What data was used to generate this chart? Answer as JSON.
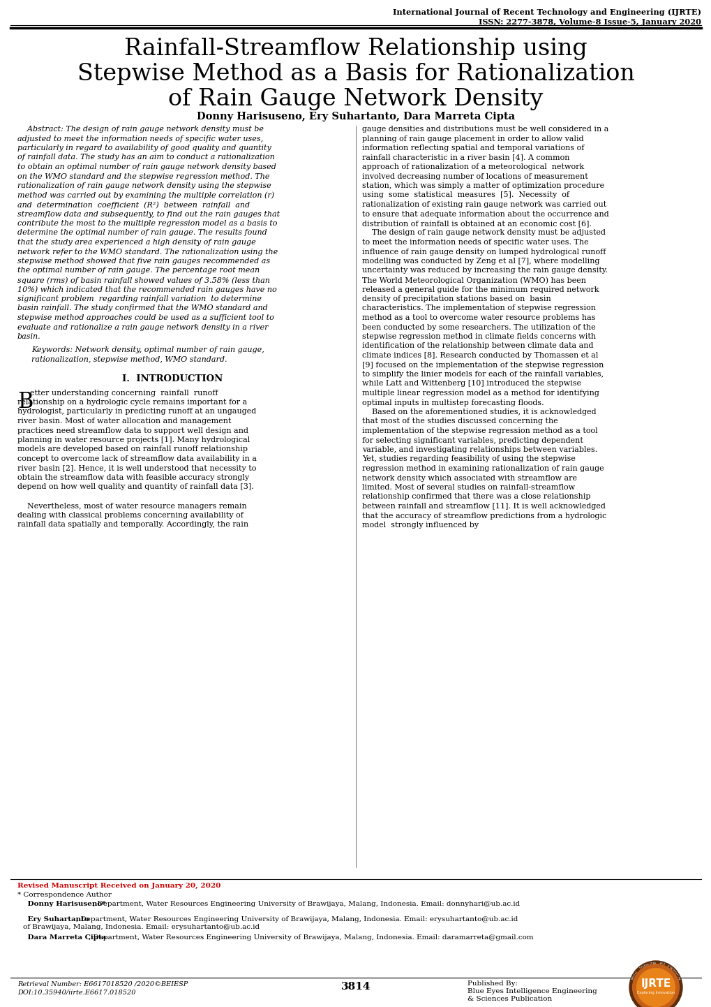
{
  "journal_line1": "International Journal of Recent Technology and Engineering (IJRTE)",
  "journal_line2": "ISSN: 2277-3878, Volume-8 Issue-5, January 2020",
  "title_line1": "Rainfall-Streamflow Relationship using",
  "title_line2": "Stepwise Method as a Basis for Rationalization",
  "title_line3": "of Rain Gauge Network Density",
  "authors": "Donny Harisuseno, Ery Suhartanto, Dara Marreta Cipta",
  "abstract_label": "Abstract:",
  "abstract_body": " The design of rain gauge network density must be adjusted to meet the information needs of specific water uses, particularly in regard to availability of good quality and quantity of rainfall data. The study has an aim to conduct a rationalization to obtain an optimal number of rain gauge network density based on the WMO standard and the stepwise regression method. The rationalization of rain gauge network density using the stepwise method was carried out by examining the multiple correlation (r) and determination coefficient (R²) between rainfall and streamflow data and subsequently, to find out the rain gauges that contribute the most to the multiple regression model as a basis to determine the optimal number of rain gauge. The results found that the study area experienced a high density of rain gauge network refer to the WMO standard. The rationalization using the stepwise method showed that five rain gauges recommended as the optimal number of rain gauge. The percentage root mean square (rms) of basin rainfall showed values of 3.58% (less than 10%) which indicated that the recommended rain gauges have no significant problem regarding rainfall variation to determine basin rainfall. The study confirmed that the WMO standard and stepwise method approaches could be used as a sufficient tool to evaluate and rationalize a rain gauge network density in a river basin.",
  "keywords_line1": "Keywords: Network density, optimal number of rain gauge,",
  "keywords_line2": "rationalization, stepwise method, WMO standard.",
  "section1_title": "I.  INTRODUCTION",
  "drop_cap": "B",
  "intro_left_col": [
    "etter understanding concerning  rainfall  runoff",
    "relationship on a hydrologic cycle remains important for a",
    "hydrologist, particularly in predicting runoff at an ungauged",
    "river basin. Most of water allocation and management",
    "practices need streamflow data to support well design and",
    "planning in water resource projects [1]. Many hydrological",
    "models are developed based on rainfall runoff relationship",
    "concept to overcome lack of streamflow data availability in a",
    "river basin [2]. Hence, it is well understood that necessity to",
    "obtain the streamflow data with feasible accuracy strongly",
    "depend on how well quality and quantity of rainfall data [3].",
    "",
    "    Nevertheless, most of water resource managers remain",
    "dealing with classical problems concerning availability of",
    "rainfall data spatially and temporally. Accordingly, the rain"
  ],
  "right_col_lines": [
    "gauge densities and distributions must be well considered in a",
    "planning of rain gauge placement in order to allow valid",
    "information reflecting spatial and temporal variations of",
    "rainfall characteristic in a river basin [4]. A common",
    "approach of rationalization of a meteorological  network",
    "involved decreasing number of locations of measurement",
    "station, which was simply a matter of optimization procedure",
    "using  some  statistical  measures  [5].  Necessity  of",
    "rationalization of existing rain gauge network was carried out",
    "to ensure that adequate information about the occurrence and",
    "distribution of rainfall is obtained at an economic cost [6].",
    "    The design of rain gauge network density must be adjusted",
    "to meet the information needs of specific water uses. The",
    "influence of rain gauge density on lumped hydrological runoff",
    "modelling was conducted by Zeng et al [7], where modelling",
    "uncertainty was reduced by increasing the rain gauge density.",
    "The World Meteorological Organization (WMO) has been",
    "released a general guide for the minimum required network",
    "density of precipitation stations based on  basin",
    "characteristics. The implementation of stepwise regression",
    "method as a tool to overcome water resource problems has",
    "been conducted by some researchers. The utilization of the",
    "stepwise regression method in climate fields concerns with",
    "identification of the relationship between climate data and",
    "climate indices [8]. Research conducted by Thomassen et al",
    "[9] focused on the implementation of the stepwise regression",
    "to simplify the linier models for each of the rainfall variables,",
    "while Latt and Wittenberg [10] introduced the stepwise",
    "multiple linear regression model as a method for identifying",
    "optimal inputs in multistep forecasting floods.",
    "    Based on the aforementioned studies, it is acknowledged",
    "that most of the studies discussed concerning the",
    "implementation of the stepwise regression method as a tool",
    "for selecting significant variables, predicting dependent",
    "variable, and investigating relationships between variables.",
    "Yet, studies regarding feasibility of using the stepwise",
    "regression method in examining rationalization of rain gauge",
    "network density which associated with streamflow are",
    "limited. Most of several studies on rainfall-streamflow",
    "relationship confirmed that there was a close relationship",
    "between rainfall and streamflow [11]. It is well acknowledged",
    "that the accuracy of streamflow predictions from a hydrologic",
    "model  strongly influenced by"
  ],
  "abstract_lines": [
    "    Abstract: The design of rain gauge network density must be",
    "adjusted to meet the information needs of specific water uses,",
    "particularly in regard to availability of good quality and quantity",
    "of rainfall data. The study has an aim to conduct a rationalization",
    "to obtain an optimal number of rain gauge network density based",
    "on the WMO standard and the stepwise regression method. The",
    "rationalization of rain gauge network density using the stepwise",
    "method was carried out by examining the multiple correlation (r)",
    "and  determination  coefficient  (R²)  between  rainfall  and",
    "streamflow data and subsequently, to find out the rain gauges that",
    "contribute the most to the multiple regression model as a basis to",
    "determine the optimal number of rain gauge. The results found",
    "that the study area experienced a high density of rain gauge",
    "network refer to the WMO standard. The rationalization using the",
    "stepwise method showed that five rain gauges recommended as",
    "the optimal number of rain gauge. The percentage root mean",
    "square (rms) of basin rainfall showed values of 3.58% (less than",
    "10%) which indicated that the recommended rain gauges have no",
    "significant problem  regarding rainfall variation  to determine",
    "basin rainfall. The study confirmed that the WMO standard and",
    "stepwise method approaches could be used as a sufficient tool to",
    "evaluate and rationalize a rain gauge network density in a river",
    "basin."
  ],
  "footer_revised": "Revised Manuscript Received on January 20, 2020",
  "footer_corr": "* Correspondence Author",
  "footer_a1_bold": "    Donny Harisuseno*",
  "footer_a1_rest": ", Department, Water Resources Engineering University of Brawijaya, Malang, Indonesia. Email: donnyhari@ub.ac.id",
  "footer_a2_bold": "    Ery Suhartanto",
  "footer_a2_rest": ", Department, Water Resources Engineering University of Brawijaya, Malang, Indonesia. Email: erysuhartanto@ub.ac.id",
  "footer_a3_bold": "    Dara Marreta Cipta",
  "footer_a3_rest": ", Department, Water Resources Engineering University of Brawijaya, Malang, Indonesia. Email: daramarreta@gmail.com",
  "retrieval": "Retrieval Number: E6617018520 /2020©BEIESP",
  "doi": "DOI:10.35940/iirte.E6617.018520",
  "page_num": "3814",
  "pub_line1": "Published By:",
  "pub_line2": "Blue Eyes Intelligence Engineering",
  "pub_line3": "& Sciences Publication",
  "bg_color": "#ffffff"
}
